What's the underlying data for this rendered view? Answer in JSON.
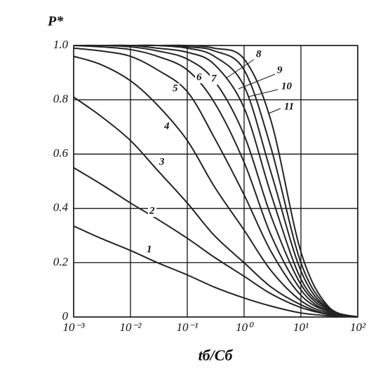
{
  "chart_data": {
    "type": "line",
    "ylabel": "P*",
    "xlabel": "tб/Cб",
    "xscale": "log",
    "grid": true,
    "x": [
      0.001,
      0.003,
      0.01,
      0.03,
      0.1,
      0.3,
      1,
      3,
      10,
      30,
      100
    ],
    "xlim": [
      0.001,
      100
    ],
    "xticks": [
      {
        "value": 0.001,
        "label": "10⁻³"
      },
      {
        "value": 0.01,
        "label": "10⁻²"
      },
      {
        "value": 0.1,
        "label": "10⁻¹"
      },
      {
        "value": 1,
        "label": "10⁰"
      },
      {
        "value": 10,
        "label": "10¹"
      },
      {
        "value": 100,
        "label": "10²"
      }
    ],
    "ylim": [
      0,
      1
    ],
    "yticks": [
      0,
      0.2,
      0.4,
      0.6,
      0.8,
      {
        "value": 1,
        "label": "1.0"
      }
    ],
    "series": [
      {
        "name": "1",
        "color": "#222222",
        "values": [
          0.335,
          0.29,
          0.245,
          0.2,
          0.155,
          0.11,
          0.07,
          0.04,
          0.015,
          0.005,
          0
        ]
      },
      {
        "name": "2",
        "color": "#222222",
        "values": [
          0.55,
          0.49,
          0.42,
          0.36,
          0.29,
          0.22,
          0.15,
          0.085,
          0.035,
          0.01,
          0
        ]
      },
      {
        "name": "3",
        "color": "#222222",
        "values": [
          0.81,
          0.74,
          0.65,
          0.54,
          0.42,
          0.3,
          0.2,
          0.11,
          0.045,
          0.01,
          0
        ]
      },
      {
        "name": "4",
        "color": "#222222",
        "values": [
          0.96,
          0.93,
          0.87,
          0.78,
          0.65,
          0.48,
          0.32,
          0.17,
          0.06,
          0.015,
          0
        ]
      },
      {
        "name": "5",
        "color": "#222222",
        "values": [
          0.99,
          0.98,
          0.96,
          0.91,
          0.83,
          0.66,
          0.45,
          0.24,
          0.08,
          0.02,
          0
        ]
      },
      {
        "name": "6",
        "color": "#222222",
        "values": [
          1,
          0.995,
          0.985,
          0.96,
          0.91,
          0.79,
          0.57,
          0.3,
          0.1,
          0.02,
          0
        ]
      },
      {
        "name": "7",
        "color": "#222222",
        "values": [
          1,
          1,
          0.995,
          0.98,
          0.95,
          0.87,
          0.67,
          0.37,
          0.12,
          0.025,
          0
        ]
      },
      {
        "name": "8",
        "color": "#222222",
        "values": [
          1,
          1,
          1,
          0.99,
          0.975,
          0.93,
          0.77,
          0.45,
          0.14,
          0.03,
          0
        ]
      },
      {
        "name": "9",
        "color": "#222222",
        "values": [
          1,
          1,
          1,
          1,
          0.99,
          0.96,
          0.85,
          0.53,
          0.17,
          0.03,
          0
        ]
      },
      {
        "name": "10",
        "color": "#222222",
        "values": [
          1,
          1,
          1,
          1,
          0.995,
          0.98,
          0.91,
          0.62,
          0.2,
          0.035,
          0
        ]
      },
      {
        "name": "11",
        "color": "#222222",
        "values": [
          1,
          1,
          1,
          1,
          1,
          0.99,
          0.95,
          0.72,
          0.24,
          0.04,
          0
        ]
      }
    ]
  }
}
